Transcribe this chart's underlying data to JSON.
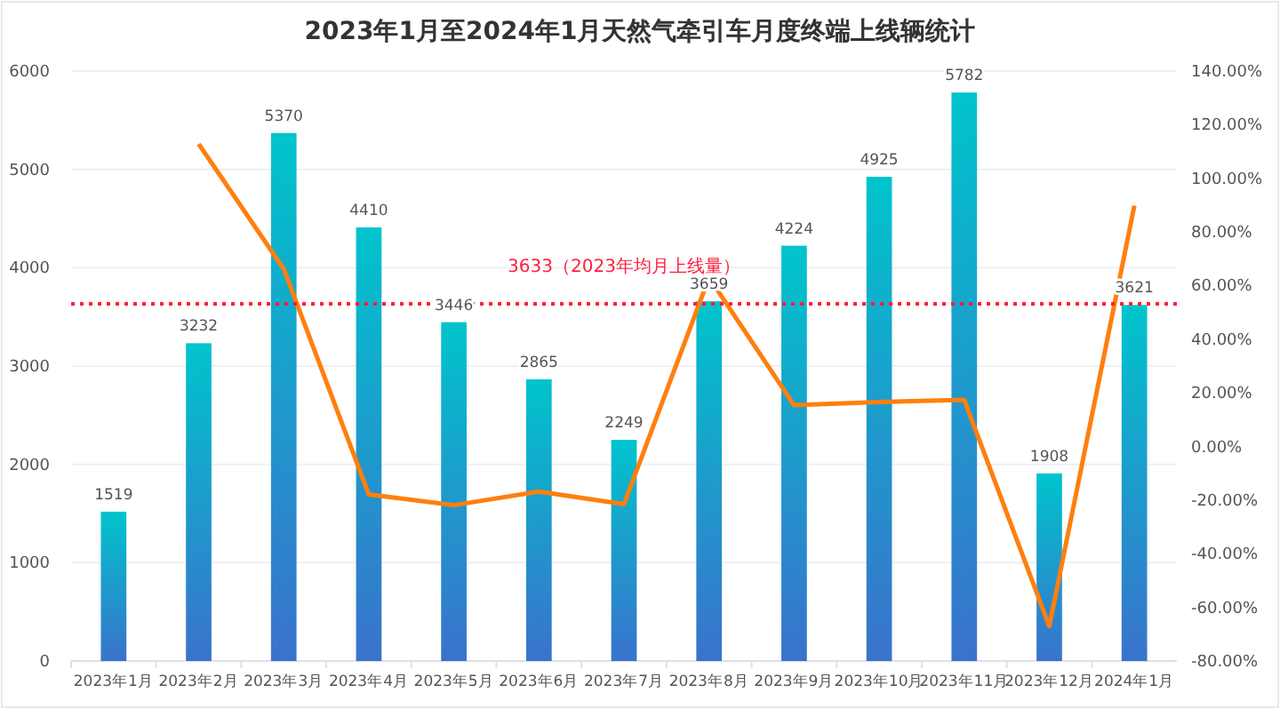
{
  "chart_data": {
    "type": "bar",
    "title": "2023年1月至2024年1月天然气牵引车月度终端上线辆统计",
    "categories": [
      "2023年1月",
      "2023年2月",
      "2023年3月",
      "2023年4月",
      "2023年5月",
      "2023年6月",
      "2023年7月",
      "2023年8月",
      "2023年9月",
      "2023年10月",
      "2023年11月",
      "2023年12月",
      "2024年1月"
    ],
    "series": [
      {
        "color": "#00c4cc",
        "values": [
          1519,
          3232,
          5370,
          4410,
          3446,
          2865,
          2249,
          3659,
          4224,
          4925,
          5782,
          1908,
          3621
        ],
        "value_labels": [
          "1519",
          "3232",
          "5370",
          "4410",
          "3446",
          "2865",
          "2249",
          "3659",
          "4224",
          "4925",
          "5782",
          "1908",
          "3621"
        ]
      },
      {
        "type": "line",
        "axis": "y2",
        "color": "#ff7f0e",
        "values": [
          null,
          112.8,
          66.2,
          -17.9,
          -21.9,
          -16.8,
          -21.5,
          63.0,
          15.4,
          16.6,
          17.4,
          -67.0,
          89.8
        ]
      }
    ],
    "ylim": [
      0,
      6000
    ],
    "yticks": [
      0,
      1000,
      2000,
      3000,
      4000,
      5000,
      6000
    ],
    "y2lim": [
      -80,
      140
    ],
    "y2ticks": [
      {
        "value": -80,
        "label": "-80.00%"
      },
      {
        "value": -60,
        "label": "-60.00%"
      },
      {
        "value": -40,
        "label": "-40.00%"
      },
      {
        "value": -20,
        "label": "-20.00%"
      },
      {
        "value": 0,
        "label": "0.00%"
      },
      {
        "value": 20,
        "label": "20.00%"
      },
      {
        "value": 40,
        "label": "40.00%"
      },
      {
        "value": 60,
        "label": "60.00%"
      },
      {
        "value": 80,
        "label": "80.00%"
      },
      {
        "value": 100,
        "label": "100.00%"
      },
      {
        "value": 120,
        "label": "120.00%"
      },
      {
        "value": 140,
        "label": "140.00%"
      }
    ],
    "ref_lines": [
      {
        "axis": "y",
        "value": 3633,
        "label": "3633（2023年均月上线量）",
        "color": "#ff1e3c",
        "line_style": "dotted"
      }
    ],
    "grid": "y",
    "marker": "none",
    "line_style": "solid"
  }
}
